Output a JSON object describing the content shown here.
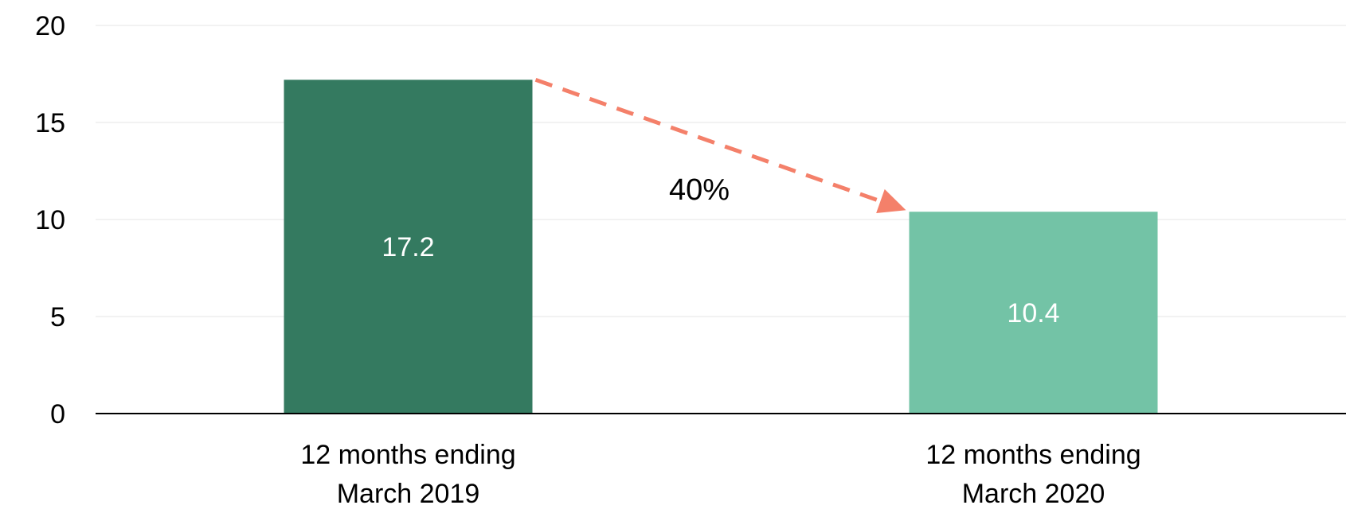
{
  "chart_data": {
    "type": "bar",
    "categories": [
      [
        "12 months ending",
        "March 2019"
      ],
      [
        "12 months ending",
        "March 2020"
      ]
    ],
    "values": [
      17.2,
      10.4
    ],
    "value_labels": [
      "17.2",
      "10.4"
    ],
    "bar_colors": [
      "#347a60",
      "#73c3a6"
    ],
    "title": "",
    "xlabel": "",
    "ylabel": "",
    "ylim": [
      0,
      20
    ],
    "yticks": [
      0,
      5,
      10,
      15,
      20
    ],
    "grid": true,
    "legend": "none",
    "annotation": {
      "text": "40%",
      "from_category": 0,
      "to_category": 1,
      "arrow_style": "dashed",
      "color": "#f4806a"
    }
  },
  "colors": {
    "grid": "#eeeeee",
    "axis": "#000000",
    "value_label": "#ffffff"
  }
}
